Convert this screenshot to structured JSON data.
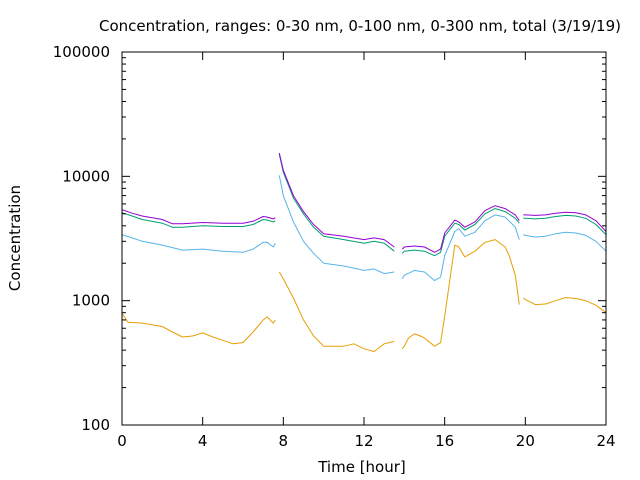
{
  "chart_data": {
    "type": "line",
    "title": "Concentration, ranges: 0-30 nm, 0-100 nm, 0-300 nm, total (3/19/19)",
    "xlabel": "Time [hour]",
    "ylabel": "Concentration",
    "xlim": [
      0,
      24
    ],
    "ylim": [
      100,
      100000
    ],
    "yscale": "log",
    "grid": false,
    "legend": "none",
    "x_ticks": [
      0,
      4,
      8,
      12,
      16,
      20,
      24
    ],
    "x_tick_labels": [
      "0",
      "4",
      "8",
      "12",
      "16",
      "20",
      "24"
    ],
    "y_ticks": [
      100,
      1000,
      10000,
      100000
    ],
    "y_tick_labels": [
      "100",
      "1000",
      "10000",
      "100000"
    ],
    "series": [
      {
        "color": "#e69f00",
        "segments": [
          {
            "x": [
              0,
              0.3,
              1,
              2,
              2.5,
              3,
              3.5,
              4,
              4.5,
              5,
              5.5,
              6,
              6.5,
              7,
              7.2,
              7.5,
              7.6
            ],
            "y": [
              790,
              670,
              660,
              620,
              560,
              510,
              520,
              550,
              510,
              480,
              450,
              460,
              560,
              700,
              740,
              660,
              700
            ]
          },
          {
            "x": [
              7.8,
              8,
              8.5,
              9,
              9.5,
              10,
              11,
              11.5,
              12,
              12.5,
              13,
              13.5
            ],
            "y": [
              1700,
              1500,
              1050,
              700,
              520,
              430,
              430,
              450,
              410,
              390,
              450,
              470
            ]
          },
          {
            "x": [
              13.9,
              14,
              14.2,
              14.5,
              14.8,
              15,
              15.5,
              15.8,
              16,
              16.5,
              16.7,
              17,
              17.5,
              18,
              18.5,
              19,
              19.2,
              19.5,
              19.7
            ],
            "y": [
              410,
              430,
              500,
              540,
              520,
              500,
              430,
              460,
              750,
              2800,
              2700,
              2250,
              2500,
              2950,
              3100,
              2700,
              2300,
              1600,
              930
            ]
          },
          {
            "x": [
              19.9,
              20,
              20.5,
              21,
              21.5,
              22,
              22.5,
              23,
              23.5,
              24
            ],
            "y": [
              1050,
              1020,
              930,
              940,
              1000,
              1060,
              1040,
              1000,
              920,
              800
            ]
          }
        ]
      },
      {
        "color": "#56b4e9",
        "segments": [
          {
            "x": [
              0,
              0.5,
              1,
              2,
              3,
              4,
              5,
              6,
              6.5,
              7,
              7.2,
              7.5,
              7.6
            ],
            "y": [
              3400,
              3200,
              3000,
              2800,
              2550,
              2600,
              2500,
              2450,
              2600,
              2950,
              2950,
              2700,
              2900
            ]
          },
          {
            "x": [
              7.8,
              8,
              8.5,
              9,
              9.5,
              10,
              11,
              12,
              12.5,
              13,
              13.5
            ],
            "y": [
              10200,
              7000,
              4300,
              3000,
              2400,
              2000,
              1900,
              1750,
              1800,
              1650,
              1700
            ]
          },
          {
            "x": [
              13.9,
              14,
              14.5,
              15,
              15.5,
              15.8,
              16,
              16.5,
              16.7,
              17,
              17.5,
              18,
              18.5,
              19,
              19.5,
              19.7
            ],
            "y": [
              1500,
              1600,
              1750,
              1700,
              1450,
              1550,
              2300,
              3600,
              3800,
              3300,
              3550,
              4400,
              4900,
              4700,
              3900,
              3100
            ]
          },
          {
            "x": [
              19.9,
              20,
              20.5,
              21,
              21.5,
              22,
              22.5,
              23,
              23.5,
              24
            ],
            "y": [
              3400,
              3350,
              3250,
              3300,
              3450,
              3550,
              3500,
              3350,
              3000,
              2500
            ]
          }
        ]
      },
      {
        "color": "#009e73",
        "segments": [
          {
            "x": [
              0,
              0.5,
              1,
              2,
              2.5,
              3,
              4,
              5,
              6,
              6.5,
              7,
              7.2,
              7.5,
              7.6
            ],
            "y": [
              5100,
              4800,
              4500,
              4200,
              3900,
              3900,
              4000,
              3950,
              3950,
              4100,
              4500,
              4450,
              4300,
              4400
            ]
          },
          {
            "x": [
              7.8,
              8,
              8.5,
              9,
              9.5,
              10,
              11,
              12,
              12.5,
              13,
              13.5
            ],
            "y": [
              15000,
              10800,
              6700,
              5000,
              3900,
              3300,
              3100,
              2900,
              3000,
              2900,
              2500
            ]
          },
          {
            "x": [
              13.9,
              14,
              14.5,
              15,
              15.5,
              15.8,
              16,
              16.5,
              16.7,
              17,
              17.5,
              18,
              18.5,
              19,
              19.5,
              19.7
            ],
            "y": [
              2400,
              2500,
              2550,
              2500,
              2300,
              2450,
              3300,
              4200,
              4100,
              3700,
              4100,
              5000,
              5500,
              5200,
              4600,
              4200
            ]
          },
          {
            "x": [
              19.9,
              20,
              20.5,
              21,
              21.5,
              22,
              22.5,
              23,
              23.5,
              24
            ],
            "y": [
              4600,
              4600,
              4550,
              4600,
              4750,
              4850,
              4800,
              4600,
              4100,
              3400
            ]
          }
        ]
      },
      {
        "color": "#9400d3",
        "segments": [
          {
            "x": [
              0,
              0.5,
              1,
              2,
              2.5,
              3,
              4,
              5,
              6,
              6.5,
              7,
              7.2,
              7.5,
              7.6
            ],
            "y": [
              5400,
              5050,
              4800,
              4500,
              4150,
              4150,
              4250,
              4200,
              4200,
              4350,
              4750,
              4700,
              4550,
              4650
            ]
          },
          {
            "x": [
              7.8,
              8,
              8.5,
              9,
              9.5,
              10,
              11,
              12,
              12.5,
              13,
              13.5
            ],
            "y": [
              15400,
              11200,
              7000,
              5200,
              4100,
              3450,
              3300,
              3100,
              3200,
              3100,
              2700
            ]
          },
          {
            "x": [
              13.9,
              14,
              14.5,
              15,
              15.5,
              15.8,
              16,
              16.5,
              16.7,
              17,
              17.5,
              18,
              18.5,
              19,
              19.5,
              19.7
            ],
            "y": [
              2600,
              2700,
              2750,
              2700,
              2450,
              2600,
              3500,
              4450,
              4300,
              3900,
              4300,
              5300,
              5800,
              5500,
              4900,
              4400
            ]
          },
          {
            "x": [
              19.9,
              20,
              20.5,
              21,
              21.5,
              22,
              22.5,
              23,
              23.5,
              24
            ],
            "y": [
              4900,
              4900,
              4850,
              4900,
              5050,
              5150,
              5100,
              4900,
              4400,
              3600
            ]
          }
        ]
      }
    ]
  }
}
